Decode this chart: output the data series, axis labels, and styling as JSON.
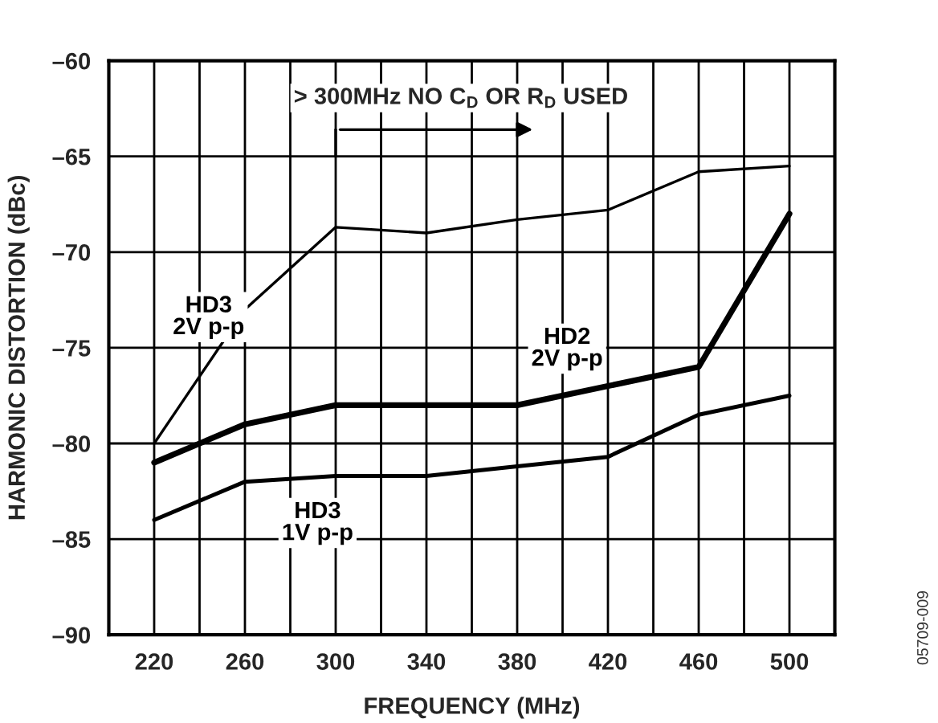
{
  "chart_data": {
    "type": "line",
    "xlabel": "FREQUENCY (MHz)",
    "ylabel": "HARMONIC DISTORTION (dBc)",
    "x": [
      220,
      260,
      300,
      340,
      380,
      420,
      460,
      500
    ],
    "series": [
      {
        "name": "HD3\n2V p-p",
        "color": "#000000",
        "values": [
          -80,
          -73,
          -68.7,
          -69,
          -68.3,
          -67.8,
          -65.8,
          -65.5
        ]
      },
      {
        "name": "HD2\n2V p-p",
        "color": "#000000",
        "values": [
          -81,
          -79,
          -78,
          -78,
          -78,
          -77,
          -76,
          -68
        ]
      },
      {
        "name": "HD3\n1V p-p",
        "color": "#000000",
        "values": [
          -84,
          -82,
          -81.7,
          -81.7,
          -81.2,
          -80.7,
          -78.5,
          -77.5
        ]
      }
    ],
    "xlim": [
      200,
      520
    ],
    "xticks": [
      220,
      {
        "value": 240,
        "label": null
      },
      260,
      {
        "value": 280,
        "label": null
      },
      300,
      {
        "value": 320,
        "label": null
      },
      340,
      {
        "value": 360,
        "label": null
      },
      380,
      {
        "value": 400,
        "label": null
      },
      420,
      {
        "value": 440,
        "label": null
      },
      460,
      {
        "value": 480,
        "label": null
      },
      500
    ],
    "ylim": [
      -90,
      -60
    ],
    "yticks": [
      {
        "value": -90,
        "label": "–90"
      },
      {
        "value": -85,
        "label": "–85"
      },
      {
        "value": -80,
        "label": "–80"
      },
      {
        "value": -75,
        "label": "–75"
      },
      {
        "value": -70,
        "label": "–70"
      },
      {
        "value": -65,
        "label": "–65"
      },
      {
        "value": -60,
        "label": "–60"
      }
    ],
    "grid": true,
    "legend": false,
    "marker": "none",
    "line_style": "solid",
    "annotations": [
      "> 300MHz NO C$_{D}$ OR R$_{D}$ USED",
      "05709-009"
    ]
  }
}
